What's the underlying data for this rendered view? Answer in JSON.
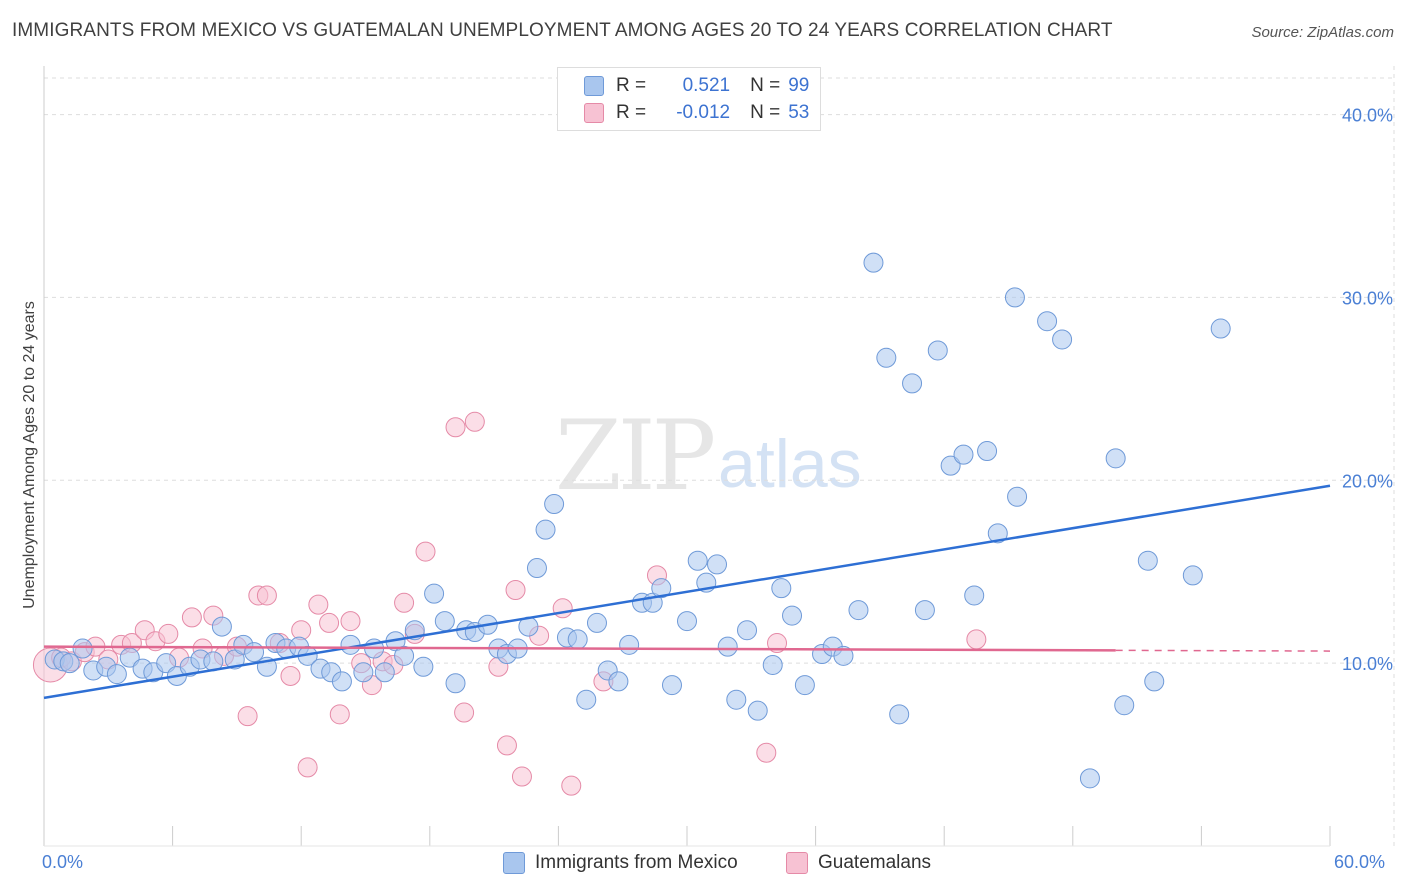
{
  "title": "IMMIGRANTS FROM MEXICO VS GUATEMALAN UNEMPLOYMENT AMONG AGES 20 TO 24 YEARS CORRELATION CHART",
  "source": "Source: ZipAtlas.com",
  "watermark": {
    "zip": "ZIP",
    "atlas": "atlas"
  },
  "legend_top": {
    "rows": [
      {
        "r_label": "R =",
        "r_value": "0.521",
        "n_label": "N =",
        "n_value": "99"
      },
      {
        "r_label": "R =",
        "r_value": "-0.012",
        "n_label": "N =",
        "n_value": "53"
      }
    ]
  },
  "legend_bottom": {
    "mexico": "Immigrants from Mexico",
    "guatemalans": "Guatemalans"
  },
  "colors": {
    "blue_fill": "#a9c6ee",
    "blue_stroke": "#6f9ad8",
    "blue_line": "#2e6fd4",
    "pink_fill": "#f7c2d3",
    "pink_stroke": "#e58aa7",
    "pink_line": "#e06890",
    "tick_text": "#4a7fd4",
    "grid": "#dddddd"
  },
  "chart_data": {
    "type": "scatter",
    "title": "IMMIGRANTS FROM MEXICO VS GUATEMALAN UNEMPLOYMENT AMONG AGES 20 TO 24 YEARS CORRELATION CHART",
    "xlabel": "",
    "ylabel": "Unemployment Among Ages 20 to 24 years",
    "xlim": [
      0,
      60
    ],
    "ylim": [
      0,
      42
    ],
    "x_tick_labels": [
      "0.0%",
      "60.0%"
    ],
    "y_ticks": [
      10,
      20,
      30,
      40
    ],
    "y_tick_labels": [
      "10.0%",
      "20.0%",
      "30.0%",
      "40.0%"
    ],
    "grid": true,
    "legend_position": "top-center",
    "series": [
      {
        "name": "Immigrants from Mexico",
        "r": 0.521,
        "n": 99,
        "trend": {
          "x": [
            0,
            60
          ],
          "y": [
            8.1,
            19.7
          ]
        },
        "points": [
          [
            0.5,
            10.2
          ],
          [
            0.9,
            10.1
          ],
          [
            1.2,
            10.0
          ],
          [
            1.8,
            10.8
          ],
          [
            2.3,
            9.6
          ],
          [
            2.9,
            9.8
          ],
          [
            3.4,
            9.4
          ],
          [
            4.0,
            10.3
          ],
          [
            4.6,
            9.7
          ],
          [
            5.1,
            9.5
          ],
          [
            5.7,
            10.0
          ],
          [
            6.2,
            9.3
          ],
          [
            6.8,
            9.8
          ],
          [
            7.3,
            10.2
          ],
          [
            7.9,
            10.1
          ],
          [
            8.3,
            12.0
          ],
          [
            8.9,
            10.2
          ],
          [
            9.3,
            11.0
          ],
          [
            9.8,
            10.6
          ],
          [
            10.4,
            9.8
          ],
          [
            10.8,
            11.1
          ],
          [
            11.3,
            10.8
          ],
          [
            11.9,
            10.9
          ],
          [
            12.3,
            10.4
          ],
          [
            12.9,
            9.7
          ],
          [
            13.4,
            9.5
          ],
          [
            13.9,
            9.0
          ],
          [
            14.3,
            11.0
          ],
          [
            14.9,
            9.5
          ],
          [
            15.4,
            10.8
          ],
          [
            15.9,
            9.5
          ],
          [
            16.4,
            11.2
          ],
          [
            16.8,
            10.4
          ],
          [
            17.3,
            11.8
          ],
          [
            17.7,
            9.8
          ],
          [
            18.2,
            13.8
          ],
          [
            18.7,
            12.3
          ],
          [
            19.2,
            8.9
          ],
          [
            19.7,
            11.8
          ],
          [
            20.1,
            11.7
          ],
          [
            20.7,
            12.1
          ],
          [
            21.2,
            10.8
          ],
          [
            21.6,
            10.5
          ],
          [
            22.1,
            10.8
          ],
          [
            22.6,
            12.0
          ],
          [
            23.0,
            15.2
          ],
          [
            23.4,
            17.3
          ],
          [
            23.8,
            18.7
          ],
          [
            24.4,
            11.4
          ],
          [
            24.9,
            11.3
          ],
          [
            25.3,
            8.0
          ],
          [
            25.8,
            12.2
          ],
          [
            26.3,
            9.6
          ],
          [
            26.8,
            9.0
          ],
          [
            27.3,
            11.0
          ],
          [
            27.9,
            13.3
          ],
          [
            28.4,
            13.3
          ],
          [
            28.8,
            14.1
          ],
          [
            29.3,
            8.8
          ],
          [
            30.0,
            12.3
          ],
          [
            30.5,
            15.6
          ],
          [
            30.9,
            14.4
          ],
          [
            31.4,
            15.4
          ],
          [
            31.9,
            10.9
          ],
          [
            32.3,
            8.0
          ],
          [
            32.8,
            11.8
          ],
          [
            33.3,
            7.4
          ],
          [
            34.0,
            9.9
          ],
          [
            34.4,
            14.1
          ],
          [
            34.9,
            12.6
          ],
          [
            35.5,
            8.8
          ],
          [
            36.3,
            10.5
          ],
          [
            36.8,
            10.9
          ],
          [
            37.3,
            10.4
          ],
          [
            38.0,
            12.9
          ],
          [
            38.7,
            31.9
          ],
          [
            39.3,
            26.7
          ],
          [
            39.9,
            7.2
          ],
          [
            40.5,
            25.3
          ],
          [
            41.1,
            12.9
          ],
          [
            41.7,
            27.1
          ],
          [
            42.3,
            20.8
          ],
          [
            42.9,
            21.4
          ],
          [
            43.4,
            13.7
          ],
          [
            44.0,
            21.6
          ],
          [
            44.5,
            17.1
          ],
          [
            45.3,
            30.0
          ],
          [
            45.4,
            19.1
          ],
          [
            46.8,
            28.7
          ],
          [
            47.5,
            27.7
          ],
          [
            48.8,
            3.7
          ],
          [
            50.0,
            21.2
          ],
          [
            50.4,
            7.7
          ],
          [
            51.5,
            15.6
          ],
          [
            51.8,
            9.0
          ],
          [
            53.6,
            14.8
          ],
          [
            54.9,
            28.3
          ]
        ]
      },
      {
        "name": "Guatemalans",
        "r": -0.012,
        "n": 53,
        "trend": {
          "x": [
            0,
            50
          ],
          "y": [
            10.9,
            10.7
          ],
          "dashed_to": 60
        },
        "points": [
          [
            0.3,
            9.9
          ],
          [
            0.8,
            10.3
          ],
          [
            1.3,
            10.1
          ],
          [
            1.9,
            10.6
          ],
          [
            2.4,
            10.9
          ],
          [
            3.0,
            10.2
          ],
          [
            3.6,
            11.0
          ],
          [
            4.1,
            11.1
          ],
          [
            4.7,
            11.8
          ],
          [
            5.2,
            11.2
          ],
          [
            5.8,
            11.6
          ],
          [
            6.3,
            10.3
          ],
          [
            6.9,
            12.5
          ],
          [
            7.4,
            10.8
          ],
          [
            7.9,
            12.6
          ],
          [
            8.4,
            10.4
          ],
          [
            9.0,
            10.9
          ],
          [
            9.5,
            7.1
          ],
          [
            10.0,
            13.7
          ],
          [
            10.4,
            13.7
          ],
          [
            11.0,
            11.1
          ],
          [
            11.5,
            9.3
          ],
          [
            12.0,
            11.8
          ],
          [
            12.3,
            4.3
          ],
          [
            12.8,
            13.2
          ],
          [
            13.3,
            12.2
          ],
          [
            13.8,
            7.2
          ],
          [
            14.3,
            12.3
          ],
          [
            14.8,
            10.0
          ],
          [
            15.3,
            8.8
          ],
          [
            15.8,
            10.1
          ],
          [
            16.3,
            9.9
          ],
          [
            16.8,
            13.3
          ],
          [
            17.3,
            11.6
          ],
          [
            17.8,
            16.1
          ],
          [
            19.2,
            22.9
          ],
          [
            19.6,
            7.3
          ],
          [
            20.1,
            23.2
          ],
          [
            21.2,
            9.8
          ],
          [
            21.6,
            5.5
          ],
          [
            22.0,
            14.0
          ],
          [
            22.3,
            3.8
          ],
          [
            23.1,
            11.5
          ],
          [
            24.2,
            13.0
          ],
          [
            24.6,
            3.3
          ],
          [
            26.1,
            9.0
          ],
          [
            28.6,
            14.8
          ],
          [
            33.7,
            5.1
          ],
          [
            34.2,
            11.1
          ],
          [
            43.5,
            11.3
          ]
        ]
      }
    ]
  }
}
